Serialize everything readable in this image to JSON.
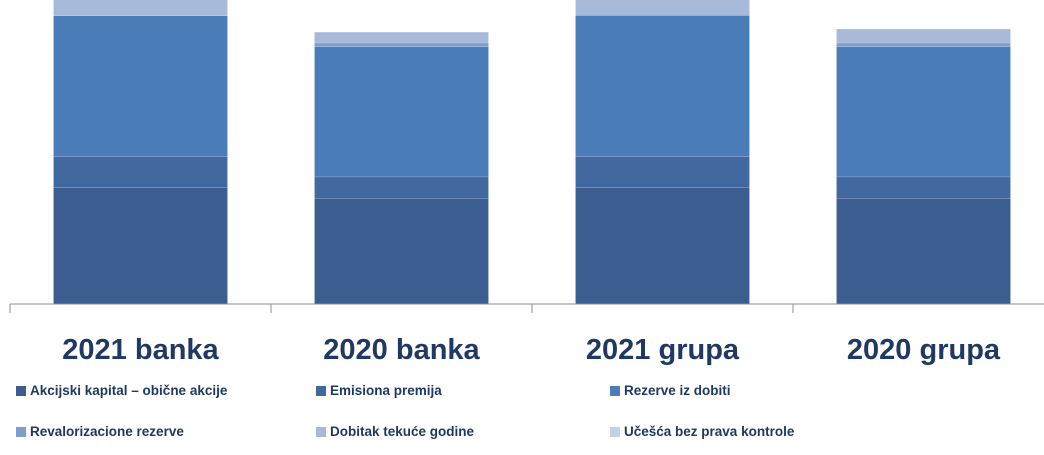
{
  "chart_data": {
    "type": "bar",
    "stacked": true,
    "categories": [
      "2021 banka",
      "2020 banka",
      "2021 grupa",
      "2020 grupa"
    ],
    "ylim": [
      0,
      100
    ],
    "grid": false,
    "legend_position": "bottom",
    "series": [
      {
        "name": "Akcijski kapital – obične akcije",
        "color": "#3b5d8f",
        "values": [
          37.5,
          34.0,
          37.5,
          34.0
        ]
      },
      {
        "name": "Emisiona premija",
        "color": "#41689f",
        "values": [
          10.0,
          7.0,
          10.0,
          7.0
        ]
      },
      {
        "name": "Rezerve iz dobiti",
        "color": "#4a7db8",
        "values": [
          45.5,
          42.0,
          45.5,
          42.0
        ]
      },
      {
        "name": "Revalorizacione rezerve",
        "color": "#7d9fcd",
        "values": [
          0.0,
          1.2,
          0.5,
          1.2
        ]
      },
      {
        "name": "Dobitak tekuće godine",
        "color": "#a8bad9",
        "values": [
          6.5,
          3.5,
          7.3,
          4.5
        ]
      },
      {
        "name": "Učešća bez prava kontrole",
        "color": "#c5d1e6",
        "values": [
          0.0,
          0.0,
          0.7,
          0.0
        ]
      }
    ]
  }
}
